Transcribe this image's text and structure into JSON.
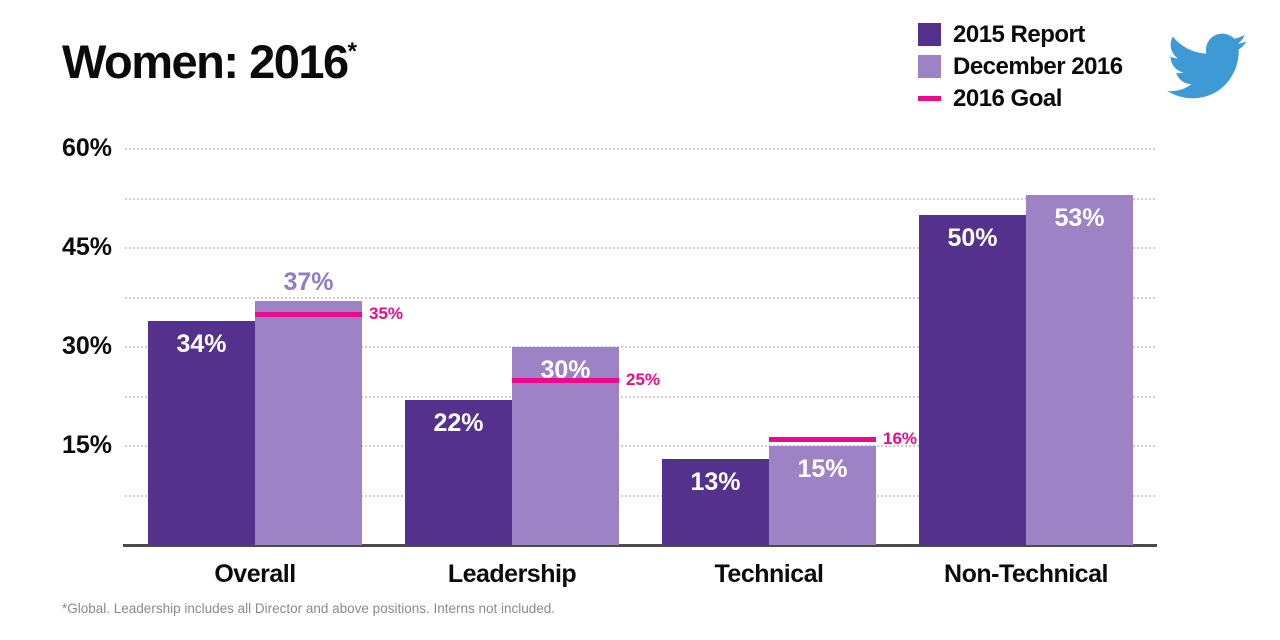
{
  "title": {
    "text": "Women: 2016",
    "marker": "*"
  },
  "legend": [
    {
      "label": "2015 Report",
      "marker": "square",
      "color": "#54318d"
    },
    {
      "label": "December 2016",
      "marker": "square",
      "color": "#9d82c5"
    },
    {
      "label": "2016 Goal",
      "marker": "line",
      "color": "#e90b8c"
    }
  ],
  "logo": {
    "name": "twitter-logo",
    "color": "#3e9ad5"
  },
  "footnote": "*Global. Leadership includes all Director and above positions. Interns not included.",
  "chart_data": {
    "type": "bar",
    "categories": [
      "Overall",
      "Leadership",
      "Technical",
      "Non-Technical"
    ],
    "series": [
      {
        "name": "2015 Report",
        "values": [
          34,
          22,
          13,
          50
        ],
        "color": "#54318d",
        "label_color": "#ffffff",
        "label_outside": [
          false,
          false,
          false,
          false
        ]
      },
      {
        "name": "December 2016",
        "values": [
          37,
          30,
          15,
          53
        ],
        "color": "#9d82c5",
        "label_color": "#ffffff",
        "label_outside": [
          true,
          false,
          false,
          false
        ]
      }
    ],
    "goals": [
      35,
      25,
      16,
      null
    ],
    "goal_color": "#e90b8c",
    "outside_label_color": "#937cc0",
    "value_suffix": "%",
    "yticks": [
      15,
      30,
      45,
      60
    ],
    "ytick_suffix": "%",
    "gridline_step": 7.5,
    "ylim": [
      0,
      60
    ],
    "grid": "dotted horizontal",
    "legend_position": "top-right"
  }
}
